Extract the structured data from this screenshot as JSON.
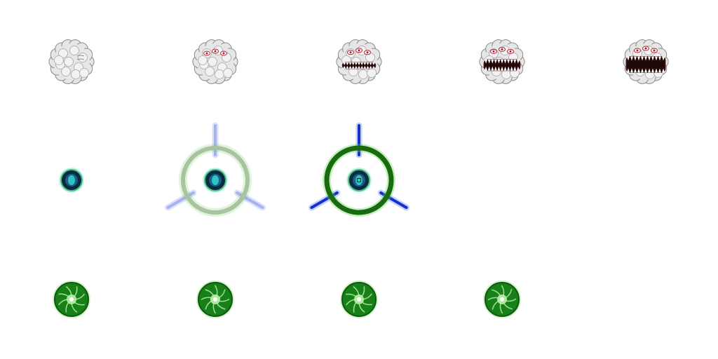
{
  "sprite_sheet": {
    "rows": [
      {
        "name": "rock-monster",
        "frames": [
          {
            "mouth_open": 0.0,
            "eyes": false
          },
          {
            "mouth_open": 0.0,
            "eyes": true
          },
          {
            "mouth_open": 0.3,
            "eyes": true
          },
          {
            "mouth_open": 0.65,
            "eyes": true
          },
          {
            "mouth_open": 1.0,
            "eyes": true
          }
        ]
      },
      {
        "name": "target-reticle",
        "frames": [
          {
            "ring_intensity": 0.0
          },
          {
            "ring_intensity": 0.45
          },
          {
            "ring_intensity": 1.0
          }
        ]
      },
      {
        "name": "green-energy-orb",
        "frames": [
          {
            "variant": 1
          },
          {
            "variant": 2
          },
          {
            "variant": 3
          },
          {
            "variant": 4
          }
        ]
      }
    ],
    "colors": {
      "rock": "#e6e6e6",
      "rock_outline": "#8a8a8a",
      "eye_red": "#b02030",
      "mouth": "#220808",
      "tooth": "#ffffff",
      "ring_green": "#1a6b10",
      "ring_glow": "#5ed04a",
      "spoke_blue": "#1530d0",
      "core_teal": "#2ec4c4",
      "orb_green": "#188018",
      "orb_light": "#b8f0a8"
    }
  }
}
